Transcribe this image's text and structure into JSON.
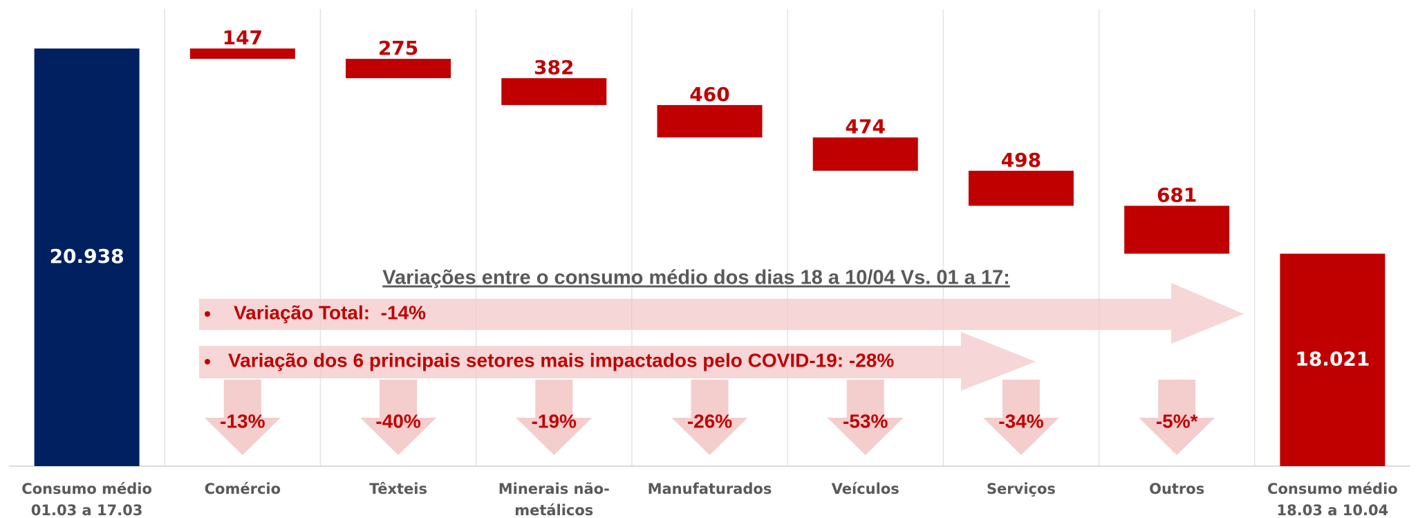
{
  "chart_data": {
    "type": "waterfall",
    "categories": [
      "Consumo médio 01.03 a 17.03",
      "Comércio",
      "Têxteis",
      "Minerais não-metálicos",
      "Manufaturados",
      "Veículos",
      "Serviços",
      "Outros",
      "Consumo médio 18.03 a 10.04"
    ],
    "values": [
      20938,
      147,
      275,
      382,
      460,
      474,
      498,
      681,
      18021
    ],
    "value_labels": [
      "20.938",
      "147",
      "275",
      "382",
      "460",
      "474",
      "498",
      "681",
      "18.021"
    ],
    "measure": [
      "absolute",
      "decrease",
      "decrease",
      "decrease",
      "decrease",
      "decrease",
      "decrease",
      "decrease",
      "absolute"
    ],
    "colors": [
      "#002060",
      "#c00000",
      "#c00000",
      "#c00000",
      "#c00000",
      "#c00000",
      "#c00000",
      "#c00000",
      "#c00000"
    ],
    "ylim": [
      15000,
      21500
    ],
    "grid": true,
    "annotation_title": "Variações entre o consumo médio dos dias 18 a 10/04 Vs. 01 a 17:",
    "annotations": [
      "Variação Total:  -14%",
      "Variação dos 6 principais setores mais impactados pelo COVID-19: -28%"
    ],
    "category_variations": [
      null,
      "-13%",
      "-40%",
      "-19%",
      "-26%",
      "-53%",
      "-34%",
      "-5%*",
      null
    ]
  }
}
